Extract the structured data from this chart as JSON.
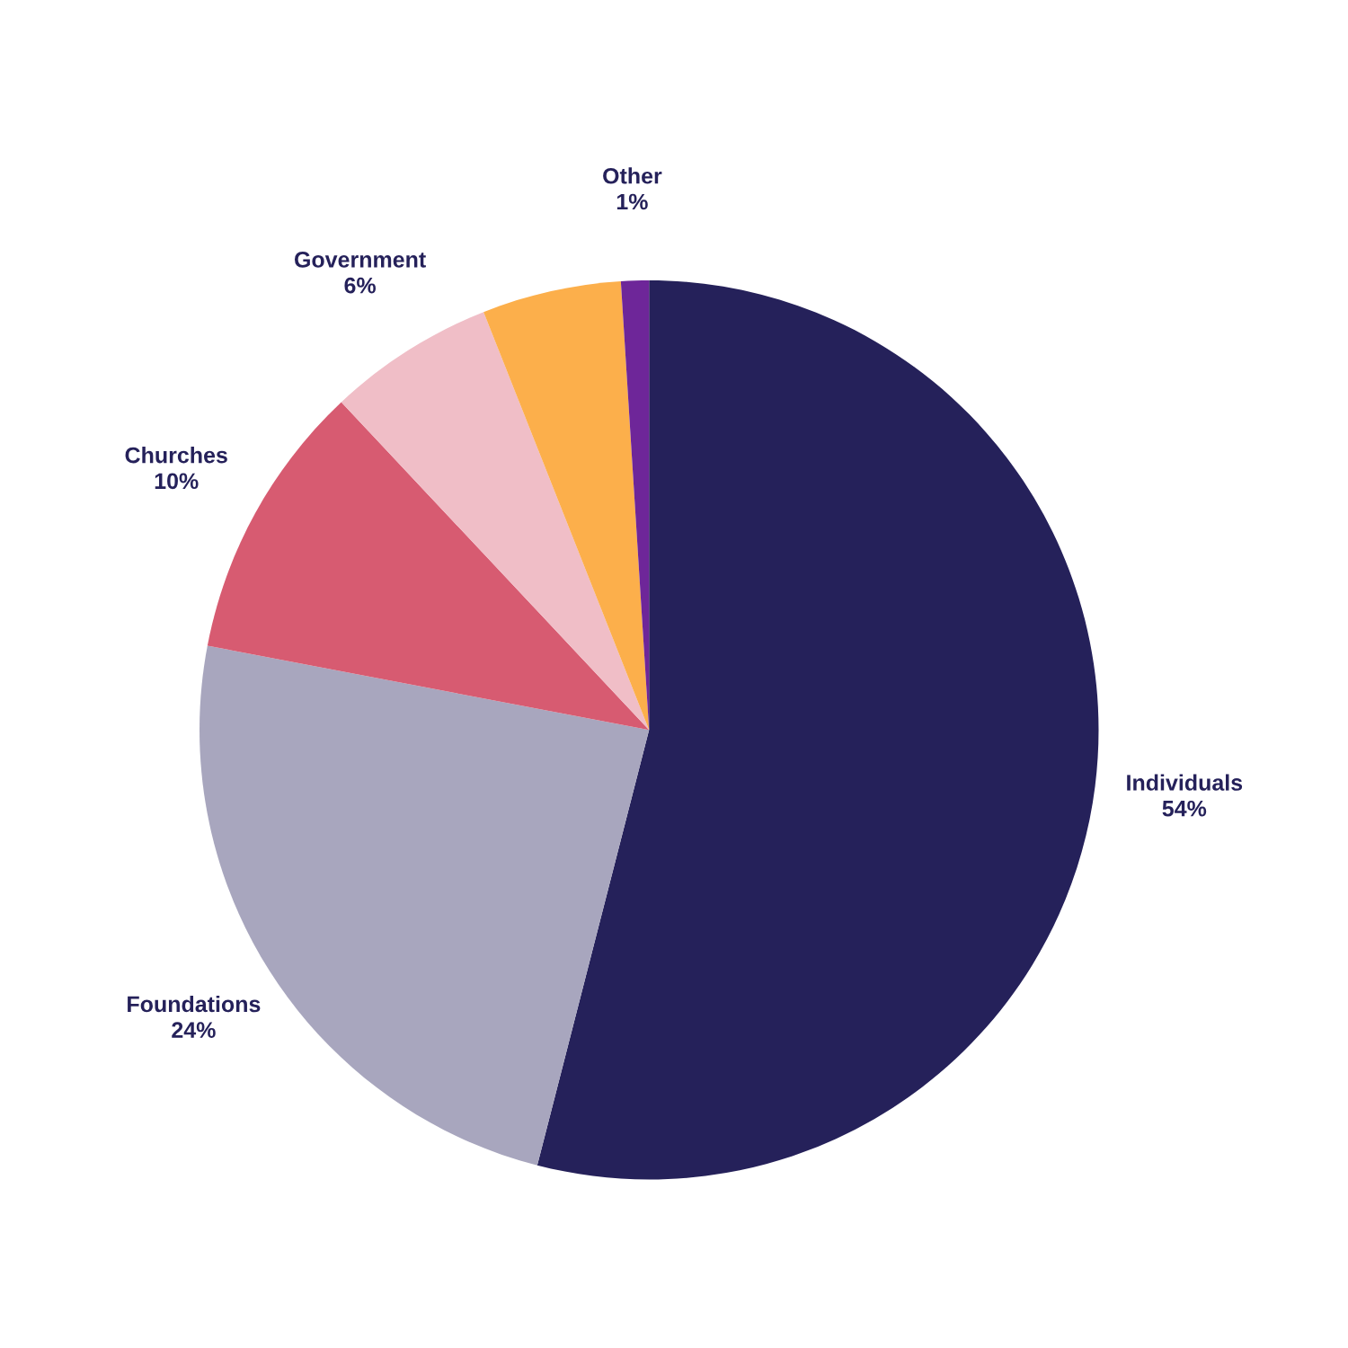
{
  "chart_data": {
    "type": "pie",
    "categories": [
      "Individuals",
      "Foundations",
      "Churches",
      "Government",
      null,
      "Other"
    ],
    "values": [
      54,
      24,
      10,
      6,
      5,
      1
    ],
    "colors": [
      "#25215a",
      "#a8a6be",
      "#d75b71",
      "#f0bec7",
      "#fcaf4b",
      "#6e2699"
    ],
    "value_labels": [
      "54%",
      "24%",
      "10%",
      "6%",
      null,
      "1%"
    ]
  }
}
